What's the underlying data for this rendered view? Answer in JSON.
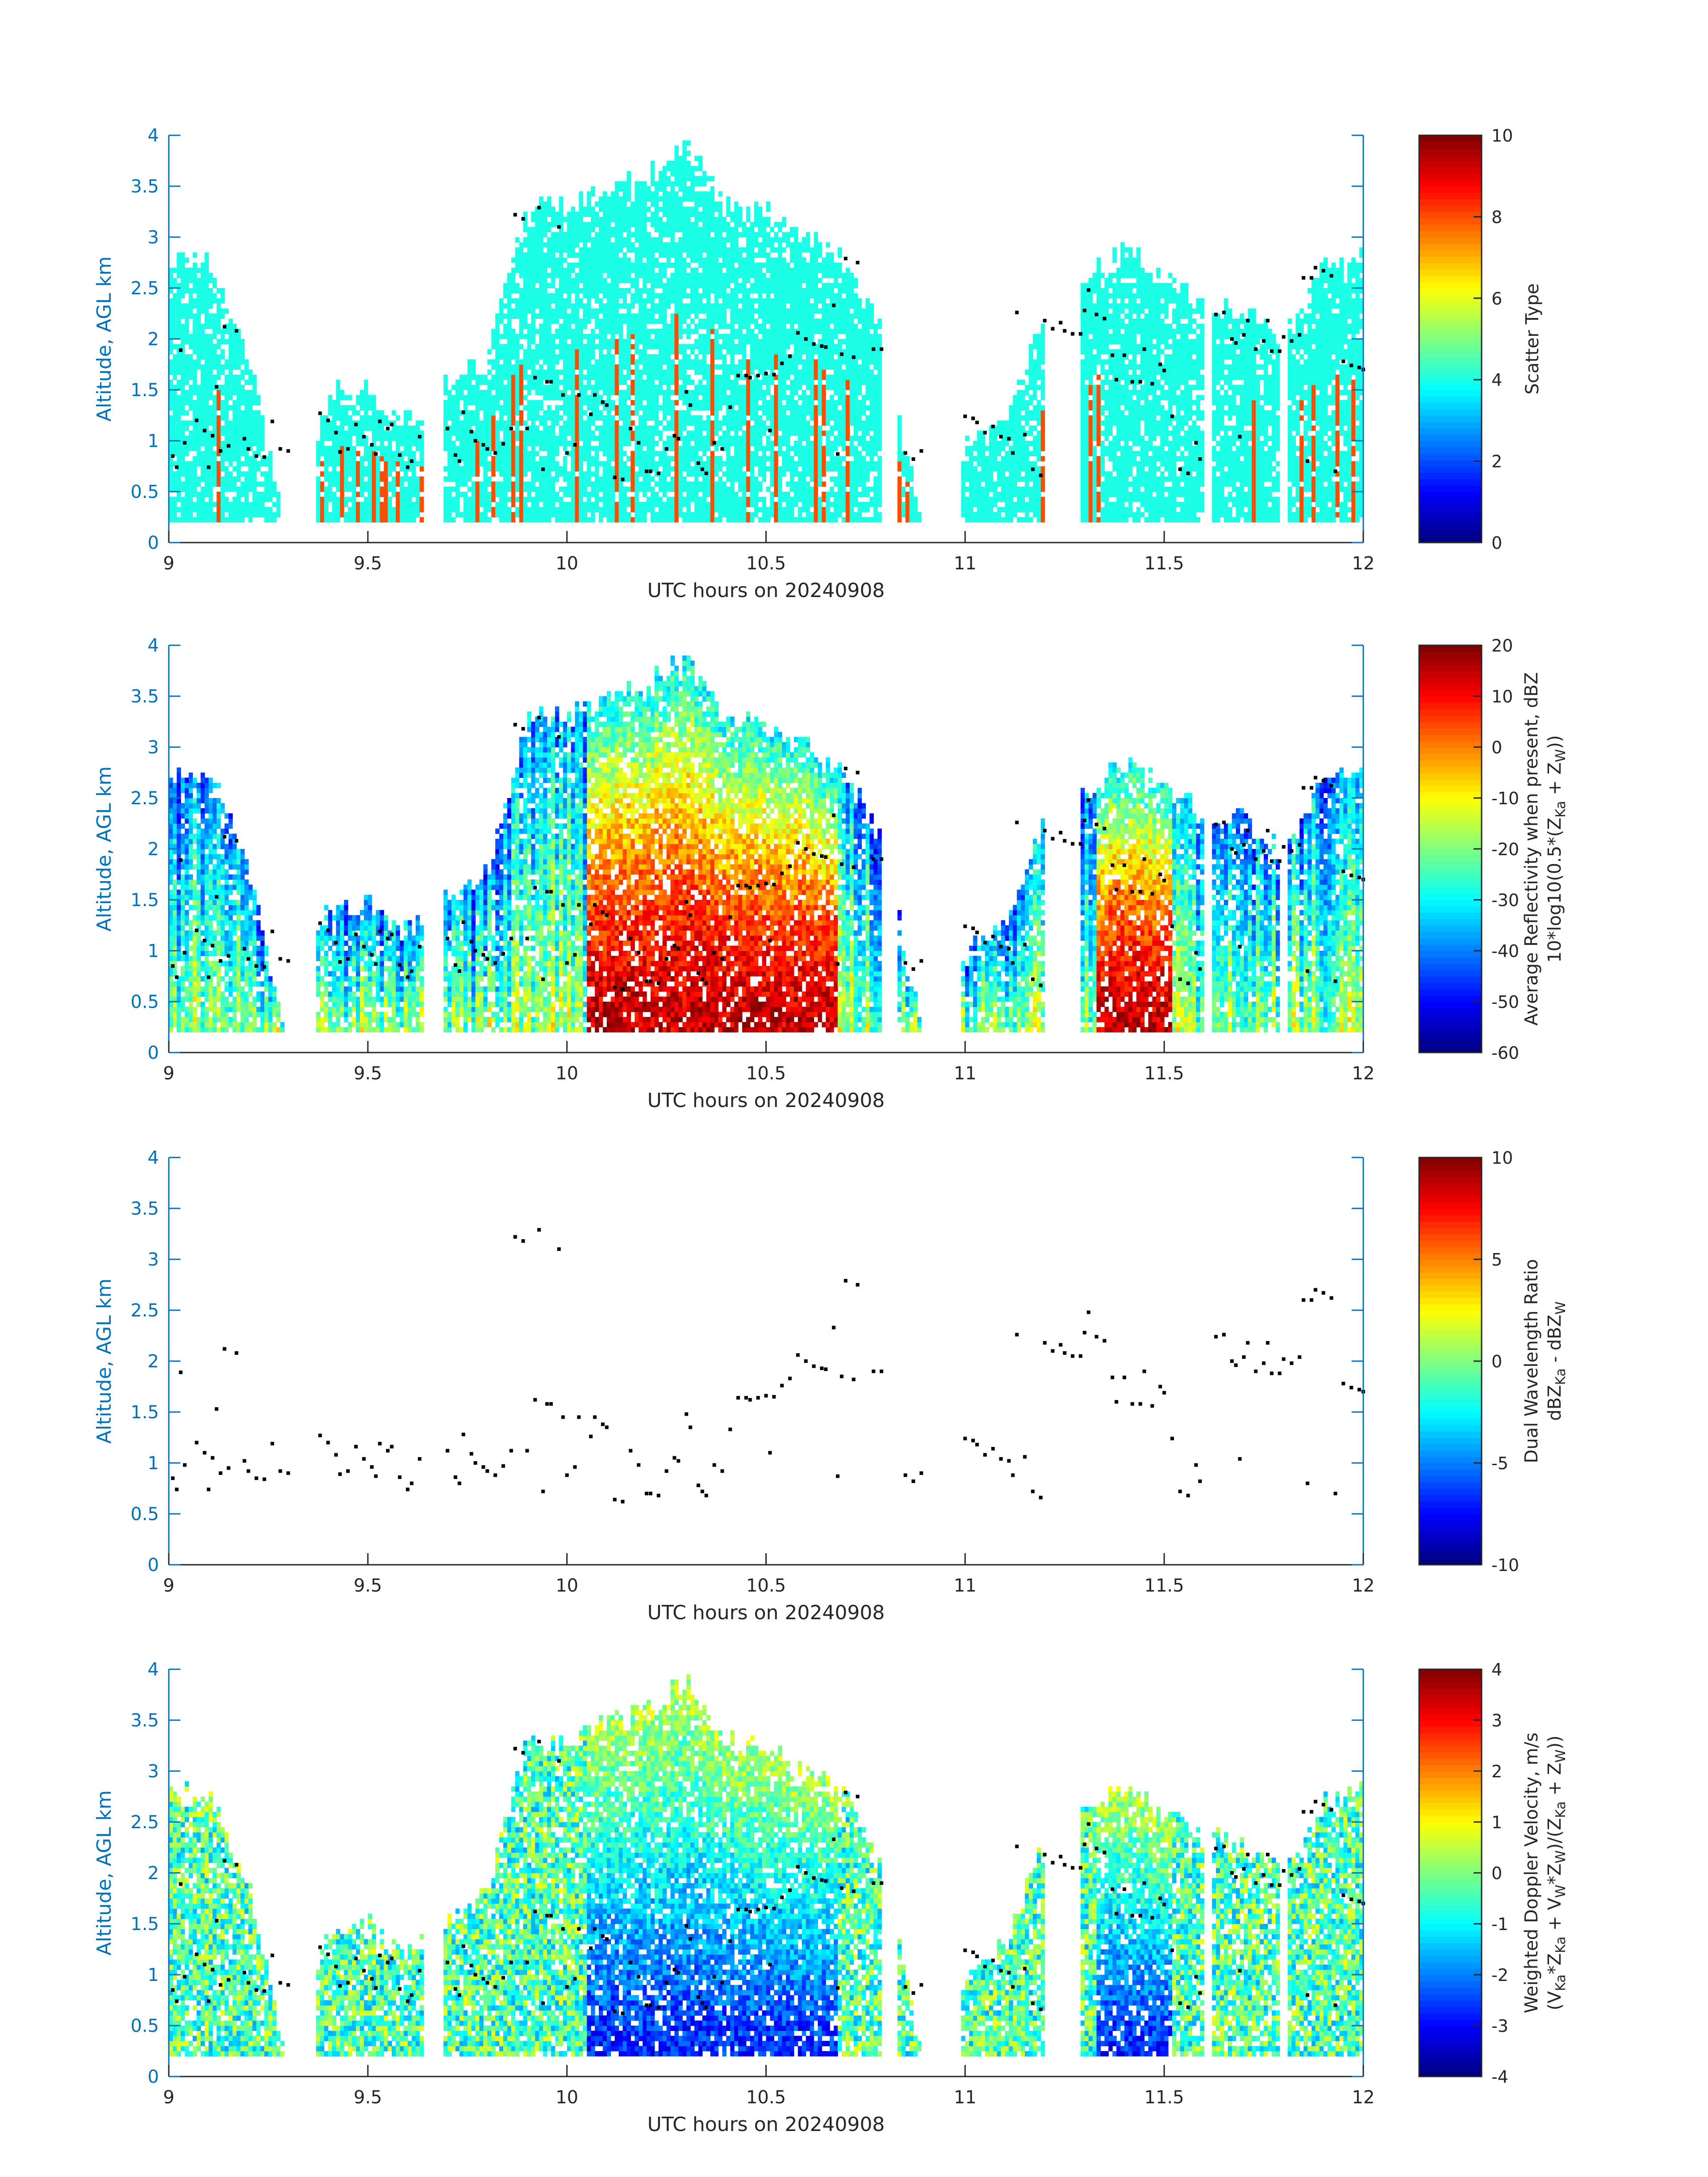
{
  "chart_data": [
    {
      "type": "heatmap",
      "xlabel": "UTC hours on 20240908",
      "ylabel": "Altitude, AGL km",
      "xlim": [
        9,
        12
      ],
      "ylim": [
        0,
        4
      ],
      "xticks": [
        "9",
        "9.5",
        "10",
        "10.5",
        "11",
        "11.5",
        "12"
      ],
      "yticks": [
        "0",
        "0.5",
        "1",
        "1.5",
        "2",
        "2.5",
        "3",
        "3.5",
        "4"
      ],
      "colorbar": {
        "label": "Scatter Type",
        "range": [
          0,
          10
        ],
        "ticks": [
          "0",
          "2",
          "4",
          "6",
          "8",
          "10"
        ],
        "colormap": "jet"
      },
      "field": "scatter_type",
      "dominant_value": 4,
      "secondary_value": 8
    },
    {
      "type": "heatmap",
      "xlabel": "UTC hours on 20240908",
      "ylabel": "Altitude, AGL km",
      "xlim": [
        9,
        12
      ],
      "ylim": [
        0,
        4
      ],
      "xticks": [
        "9",
        "9.5",
        "10",
        "10.5",
        "11",
        "11.5",
        "12"
      ],
      "yticks": [
        "0",
        "0.5",
        "1",
        "1.5",
        "2",
        "2.5",
        "3",
        "3.5",
        "4"
      ],
      "colorbar": {
        "label_line1": "Average Reflectivity when present, dBZ",
        "label_line2": "10*log10(0.5*(Z",
        "label_line2_sub1": "Ka",
        "label_line2_mid": " + Z",
        "label_line2_sub2": "W",
        "label_line2_end": "))",
        "range": [
          -60,
          20
        ],
        "ticks": [
          "-60",
          "-50",
          "-40",
          "-30",
          "-20",
          "-10",
          "0",
          "10",
          "20"
        ],
        "colormap": "jet"
      },
      "field": "reflectivity"
    },
    {
      "type": "heatmap",
      "xlabel": "UTC hours on 20240908",
      "ylabel": "Altitude, AGL km",
      "xlim": [
        9,
        12
      ],
      "ylim": [
        0,
        4
      ],
      "xticks": [
        "9",
        "9.5",
        "10",
        "10.5",
        "11",
        "11.5",
        "12"
      ],
      "yticks": [
        "0",
        "0.5",
        "1",
        "1.5",
        "2",
        "2.5",
        "3",
        "3.5",
        "4"
      ],
      "colorbar": {
        "label_line1": "Dual Wavelength Ratio",
        "label_line2": "dBZ",
        "label_line2_sub1": "Ka",
        "label_line2_mid": " - dBZ",
        "label_line2_sub2": "W",
        "label_line2_end": "",
        "range": [
          -10,
          10
        ],
        "ticks": [
          "-10",
          "-5",
          "0",
          "5",
          "10"
        ],
        "colormap": "jet"
      },
      "field": "none"
    },
    {
      "type": "heatmap",
      "xlabel": "UTC hours on 20240908",
      "ylabel": "Altitude, AGL km",
      "xlim": [
        9,
        12
      ],
      "ylim": [
        0,
        4
      ],
      "xticks": [
        "9",
        "9.5",
        "10",
        "10.5",
        "11",
        "11.5",
        "12"
      ],
      "yticks": [
        "0",
        "0.5",
        "1",
        "1.5",
        "2",
        "2.5",
        "3",
        "3.5",
        "4"
      ],
      "colorbar": {
        "label_line1": "Weighted Doppler Velocity, m/s",
        "label_line2": "(V",
        "label_line2_sub1": "Ka",
        "label_line2_mid": "*Z",
        "label_line2_sub2": "Ka",
        "label_line2_end": " + V",
        "label_line2_sub3": "W",
        "label_line2_end2": "*Z",
        "label_line2_sub4": "W",
        "label_line2_end3": ")/(Z",
        "label_line2_sub5": "Ka",
        "label_line2_end4": " + Z",
        "label_line2_sub6": "W",
        "label_line2_end5": "))",
        "range": [
          -4,
          4
        ],
        "ticks": [
          "-4",
          "-3",
          "-2",
          "-1",
          "0",
          "1",
          "2",
          "3",
          "4"
        ],
        "colormap": "jet"
      },
      "field": "doppler"
    }
  ],
  "cloud_profile": {
    "x": [
      9.0,
      9.1,
      9.2,
      9.3,
      9.4,
      9.5,
      9.6,
      9.7,
      9.8,
      9.9,
      10.0,
      10.1,
      10.2,
      10.3,
      10.4,
      10.5,
      10.6,
      10.7,
      10.8,
      10.9,
      11.0,
      11.1,
      11.2,
      11.3,
      11.4,
      11.5,
      11.6,
      11.7,
      11.8,
      11.9,
      12.0
    ],
    "top_km": [
      2.8,
      2.8,
      1.9,
      0,
      1.5,
      1.5,
      1.2,
      1.6,
      1.8,
      3.3,
      3.3,
      3.5,
      3.6,
      3.95,
      3.3,
      3.3,
      3.0,
      2.8,
      2.0,
      0,
      1.0,
      1.3,
      2.3,
      2.6,
      2.9,
      2.6,
      2.4,
      2.3,
      2.0,
      2.7,
      2.8
    ],
    "base_km": 0.2
  },
  "markers": [
    [
      9.01,
      0.85
    ],
    [
      9.02,
      0.74
    ],
    [
      9.03,
      1.89
    ],
    [
      9.04,
      0.98
    ],
    [
      9.07,
      1.2
    ],
    [
      9.09,
      1.1
    ],
    [
      9.1,
      0.74
    ],
    [
      9.11,
      1.05
    ],
    [
      9.12,
      1.53
    ],
    [
      9.13,
      0.9
    ],
    [
      9.14,
      2.12
    ],
    [
      9.15,
      0.95
    ],
    [
      9.17,
      2.08
    ],
    [
      9.19,
      1.02
    ],
    [
      9.2,
      0.92
    ],
    [
      9.22,
      0.85
    ],
    [
      9.24,
      0.84
    ],
    [
      9.26,
      1.19
    ],
    [
      9.28,
      0.92
    ],
    [
      9.3,
      0.9
    ],
    [
      9.38,
      1.27
    ],
    [
      9.4,
      1.2
    ],
    [
      9.42,
      1.08
    ],
    [
      9.43,
      0.89
    ],
    [
      9.45,
      0.92
    ],
    [
      9.47,
      1.16
    ],
    [
      9.49,
      1.04
    ],
    [
      9.51,
      0.96
    ],
    [
      9.52,
      0.87
    ],
    [
      9.53,
      1.19
    ],
    [
      9.55,
      1.12
    ],
    [
      9.56,
      1.16
    ],
    [
      9.58,
      0.86
    ],
    [
      9.6,
      0.74
    ],
    [
      9.61,
      0.8
    ],
    [
      9.63,
      1.04
    ],
    [
      9.7,
      1.12
    ],
    [
      9.72,
      0.86
    ],
    [
      9.73,
      0.8
    ],
    [
      9.74,
      1.28
    ],
    [
      9.76,
      1.09
    ],
    [
      9.77,
      1.0
    ],
    [
      9.79,
      0.96
    ],
    [
      9.8,
      0.92
    ],
    [
      9.82,
      0.88
    ],
    [
      9.84,
      0.97
    ],
    [
      9.86,
      1.12
    ],
    [
      9.87,
      3.22
    ],
    [
      9.89,
      3.18
    ],
    [
      9.9,
      1.12
    ],
    [
      9.92,
      1.62
    ],
    [
      9.93,
      3.29
    ],
    [
      9.94,
      0.72
    ],
    [
      9.95,
      1.58
    ],
    [
      9.96,
      1.58
    ],
    [
      9.98,
      3.1
    ],
    [
      9.99,
      1.45
    ],
    [
      10.0,
      0.88
    ],
    [
      10.02,
      0.96
    ],
    [
      10.03,
      1.45
    ],
    [
      10.06,
      1.26
    ],
    [
      10.07,
      1.45
    ],
    [
      10.09,
      1.38
    ],
    [
      10.1,
      1.35
    ],
    [
      10.12,
      0.64
    ],
    [
      10.14,
      0.62
    ],
    [
      10.16,
      1.12
    ],
    [
      10.18,
      0.98
    ],
    [
      10.2,
      0.7
    ],
    [
      10.21,
      0.7
    ],
    [
      10.23,
      0.68
    ],
    [
      10.25,
      0.92
    ],
    [
      10.27,
      1.05
    ],
    [
      10.28,
      1.02
    ],
    [
      10.3,
      1.48
    ],
    [
      10.31,
      1.35
    ],
    [
      10.33,
      0.78
    ],
    [
      10.34,
      0.72
    ],
    [
      10.35,
      0.68
    ],
    [
      10.37,
      0.98
    ],
    [
      10.39,
      0.92
    ],
    [
      10.41,
      1.33
    ],
    [
      10.43,
      1.64
    ],
    [
      10.45,
      1.64
    ],
    [
      10.46,
      1.62
    ],
    [
      10.48,
      1.64
    ],
    [
      10.5,
      1.66
    ],
    [
      10.51,
      1.1
    ],
    [
      10.52,
      1.65
    ],
    [
      10.54,
      1.76
    ],
    [
      10.56,
      1.83
    ],
    [
      10.58,
      2.06
    ],
    [
      10.6,
      2.0
    ],
    [
      10.62,
      1.95
    ],
    [
      10.64,
      1.93
    ],
    [
      10.65,
      1.92
    ],
    [
      10.67,
      2.33
    ],
    [
      10.68,
      0.87
    ],
    [
      10.69,
      1.85
    ],
    [
      10.7,
      2.79
    ],
    [
      10.72,
      1.82
    ],
    [
      10.73,
      2.75
    ],
    [
      10.77,
      1.9
    ],
    [
      10.79,
      1.9
    ],
    [
      10.85,
      0.88
    ],
    [
      10.87,
      0.82
    ],
    [
      10.89,
      0.9
    ],
    [
      11.0,
      1.24
    ],
    [
      11.02,
      1.22
    ],
    [
      11.03,
      1.18
    ],
    [
      11.05,
      1.08
    ],
    [
      11.07,
      1.14
    ],
    [
      11.09,
      1.04
    ],
    [
      11.11,
      1.02
    ],
    [
      11.12,
      0.88
    ],
    [
      11.13,
      2.26
    ],
    [
      11.15,
      1.06
    ],
    [
      11.17,
      0.72
    ],
    [
      11.19,
      0.66
    ],
    [
      11.2,
      2.18
    ],
    [
      11.22,
      2.1
    ],
    [
      11.24,
      2.16
    ],
    [
      11.25,
      2.08
    ],
    [
      11.27,
      2.05
    ],
    [
      11.29,
      2.05
    ],
    [
      11.3,
      2.28
    ],
    [
      11.31,
      2.48
    ],
    [
      11.33,
      2.24
    ],
    [
      11.35,
      2.2
    ],
    [
      11.37,
      1.84
    ],
    [
      11.38,
      1.6
    ],
    [
      11.4,
      1.84
    ],
    [
      11.42,
      1.58
    ],
    [
      11.44,
      1.58
    ],
    [
      11.45,
      1.9
    ],
    [
      11.47,
      1.56
    ],
    [
      11.49,
      1.75
    ],
    [
      11.5,
      1.69
    ],
    [
      11.52,
      1.24
    ],
    [
      11.54,
      0.72
    ],
    [
      11.56,
      0.68
    ],
    [
      11.58,
      0.98
    ],
    [
      11.59,
      0.82
    ],
    [
      11.63,
      2.24
    ],
    [
      11.65,
      2.26
    ],
    [
      11.67,
      2.0
    ],
    [
      11.68,
      1.96
    ],
    [
      11.69,
      1.04
    ],
    [
      11.7,
      2.04
    ],
    [
      11.71,
      2.18
    ],
    [
      11.73,
      1.9
    ],
    [
      11.75,
      1.98
    ],
    [
      11.76,
      2.18
    ],
    [
      11.77,
      1.88
    ],
    [
      11.79,
      1.88
    ],
    [
      11.8,
      2.02
    ],
    [
      11.82,
      1.98
    ],
    [
      11.84,
      2.04
    ],
    [
      11.85,
      2.6
    ],
    [
      11.86,
      0.8
    ],
    [
      11.87,
      2.6
    ],
    [
      11.88,
      2.7
    ],
    [
      11.9,
      2.67
    ],
    [
      11.92,
      2.62
    ],
    [
      11.93,
      0.7
    ],
    [
      11.95,
      1.78
    ],
    [
      11.97,
      1.74
    ],
    [
      11.99,
      1.72
    ],
    [
      12.0,
      1.7
    ]
  ]
}
